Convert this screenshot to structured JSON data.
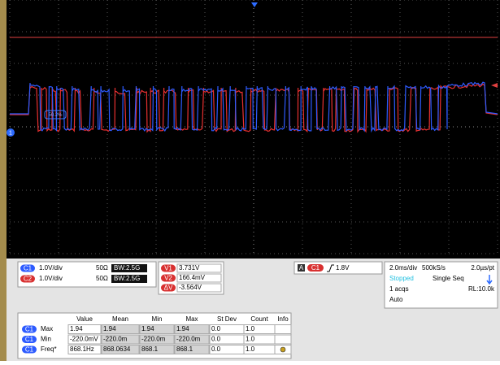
{
  "scope": {
    "channel_marker": "1",
    "cursor_label": "50.2%"
  },
  "channels": [
    {
      "id": "C1",
      "scale": "1.0V/div",
      "impedance": "50Ω",
      "bandwidth": "BW:2.5G"
    },
    {
      "id": "C2",
      "scale": "1.0V/div",
      "impedance": "50Ω",
      "bandwidth": "BW:2.5G"
    }
  ],
  "cursors": [
    {
      "id": "V1",
      "value": "3.731V"
    },
    {
      "id": "V2",
      "value": "166.4mV"
    },
    {
      "id": "ΔV",
      "value": "-3.564V"
    }
  ],
  "trigger": {
    "group": "A",
    "channel": "C1",
    "level": "1.8V"
  },
  "timebase": {
    "scale": "2.0ms/div",
    "rate": "500kS/s",
    "resolution": "2.0µs/pt",
    "status": "Stopped",
    "mode": "Single Seq",
    "acquisitions": "1 acqs",
    "record_length": "RL:10.0k",
    "trigger_mode": "Auto"
  },
  "measurements": {
    "columns": [
      "Value",
      "Mean",
      "Min",
      "Max",
      "St Dev",
      "Count",
      "Info"
    ],
    "rows": [
      {
        "channel": "C1",
        "name": "Max",
        "cells": [
          "1.94",
          "1.94",
          "1.94",
          "1.94",
          "0.0",
          "1.0"
        ]
      },
      {
        "channel": "C1",
        "name": "Min",
        "cells": [
          "-220.0mV",
          "-220.0m",
          "-220.0m",
          "-220.0m",
          "0.0",
          "1.0"
        ]
      },
      {
        "channel": "C1",
        "name": "Freq*",
        "cells": [
          "868.1Hz",
          "868.0634",
          "868.1",
          "868.1",
          "0.0",
          "1.0"
        ]
      }
    ]
  }
}
